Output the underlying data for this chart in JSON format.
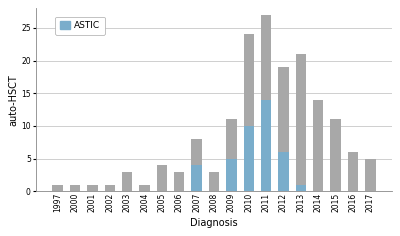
{
  "years": [
    "1997",
    "2000",
    "2001",
    "2002",
    "2003",
    "2004",
    "2005",
    "2006",
    "2007",
    "2008",
    "2009",
    "2010",
    "2011",
    "2012",
    "2013",
    "2014",
    "2015",
    "2016",
    "2017"
  ],
  "total": [
    1,
    1,
    1,
    1,
    3,
    1,
    4,
    3,
    8,
    3,
    11,
    24,
    27,
    19,
    21,
    14,
    11,
    6,
    5
  ],
  "astic": [
    0,
    0,
    0,
    0,
    0,
    0,
    0,
    0,
    4,
    0,
    5,
    10,
    14,
    6,
    1,
    0,
    0,
    0,
    0
  ],
  "bar_color_gray": "#a8a8a8",
  "bar_color_blue": "#7aadcb",
  "ylabel": "auto-HSCT",
  "xlabel": "Diagnosis",
  "legend_label": "ASTIC",
  "ylim": [
    0,
    28
  ],
  "yticks": [
    0,
    5,
    10,
    15,
    20,
    25
  ],
  "background_color": "#ffffff",
  "plot_bg_color": "#ffffff",
  "grid_color": "#c8c8c8",
  "axis_fontsize": 7,
  "tick_fontsize": 5.5,
  "legend_fontsize": 6.5,
  "bar_width": 0.6
}
